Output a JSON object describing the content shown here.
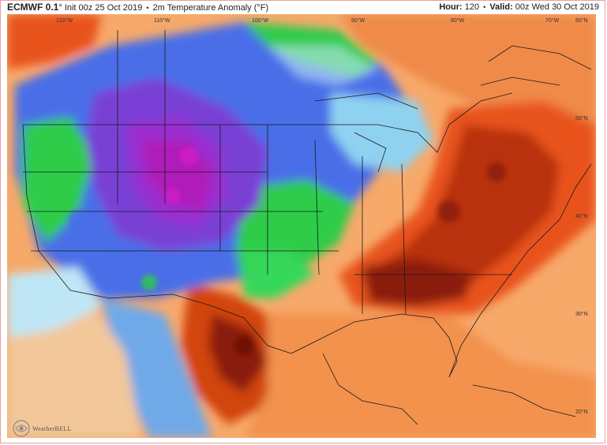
{
  "header": {
    "model": "ECMWF 0.1",
    "degree": "°",
    "init": "Init 00z 25 Oct 2019",
    "separator": "•",
    "product": "2m Temperature Anomaly (°F)",
    "hour_label": "Hour:",
    "hour_value": "120",
    "valid_label": "Valid:",
    "valid_value": "00z Wed 30 Oct 2019"
  },
  "map": {
    "longitude_labels": [
      "120°W",
      "110°W",
      "100°W",
      "90°W",
      "80°W",
      "70°W",
      "60°N"
    ],
    "latitude_labels": [
      "50°N",
      "40°N",
      "30°N",
      "20°N"
    ],
    "colors": {
      "much_colder": "#b01ab8",
      "colder": "#7a3fd6",
      "cool": "#4a6ee8",
      "slightly_cool": "#2ecc4a",
      "near_normal": "#bfe6f5",
      "slightly_warm": "#f7a96a",
      "warm": "#e8531a",
      "much_warmer": "#8a1a08"
    }
  },
  "logo": {
    "text": "WeatherBELL"
  }
}
